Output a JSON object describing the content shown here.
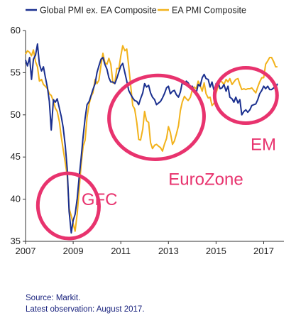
{
  "chart_data": {
    "type": "line",
    "series": [
      {
        "name": "Global PMI ex. EA Composite",
        "color": "#1a2f8f",
        "points": [
          [
            2007.0,
            56.5
          ],
          [
            2007.08,
            55.8
          ],
          [
            2007.17,
            56.8
          ],
          [
            2007.25,
            54.2
          ],
          [
            2007.33,
            56.6
          ],
          [
            2007.42,
            57.1
          ],
          [
            2007.5,
            58.4
          ],
          [
            2007.58,
            56.0
          ],
          [
            2007.67,
            55.2
          ],
          [
            2007.75,
            55.7
          ],
          [
            2007.83,
            54.5
          ],
          [
            2007.92,
            53.2
          ],
          [
            2008.0,
            51.6
          ],
          [
            2008.08,
            48.2
          ],
          [
            2008.17,
            51.8
          ],
          [
            2008.25,
            51.5
          ],
          [
            2008.33,
            51.9
          ],
          [
            2008.42,
            50.8
          ],
          [
            2008.5,
            49.8
          ],
          [
            2008.58,
            48.5
          ],
          [
            2008.67,
            46.3
          ],
          [
            2008.75,
            43.6
          ],
          [
            2008.83,
            38.5
          ],
          [
            2008.92,
            36.0
          ],
          [
            2009.0,
            37.5
          ],
          [
            2009.08,
            38.2
          ],
          [
            2009.17,
            40.1
          ],
          [
            2009.25,
            42.6
          ],
          [
            2009.33,
            44.8
          ],
          [
            2009.42,
            47.5
          ],
          [
            2009.5,
            49.6
          ],
          [
            2009.58,
            51.2
          ],
          [
            2009.67,
            51.6
          ],
          [
            2009.75,
            52.3
          ],
          [
            2009.83,
            53.0
          ],
          [
            2009.92,
            53.7
          ],
          [
            2010.0,
            55.0
          ],
          [
            2010.08,
            55.8
          ],
          [
            2010.17,
            56.6
          ],
          [
            2010.25,
            56.8
          ],
          [
            2010.33,
            56.0
          ],
          [
            2010.42,
            55.4
          ],
          [
            2010.5,
            54.4
          ],
          [
            2010.58,
            53.9
          ],
          [
            2010.67,
            53.9
          ],
          [
            2010.75,
            53.7
          ],
          [
            2010.83,
            54.3
          ],
          [
            2010.92,
            55.1
          ],
          [
            2011.0,
            55.8
          ],
          [
            2011.08,
            56.1
          ],
          [
            2011.17,
            55.0
          ],
          [
            2011.25,
            54.0
          ],
          [
            2011.33,
            52.9
          ],
          [
            2011.42,
            52.4
          ],
          [
            2011.5,
            52.0
          ],
          [
            2011.58,
            51.7
          ],
          [
            2011.67,
            51.6
          ],
          [
            2011.75,
            51.2
          ],
          [
            2011.83,
            51.9
          ],
          [
            2011.92,
            52.6
          ],
          [
            2012.0,
            53.7
          ],
          [
            2012.08,
            53.3
          ],
          [
            2012.17,
            53.5
          ],
          [
            2012.25,
            52.6
          ],
          [
            2012.33,
            52.1
          ],
          [
            2012.42,
            51.8
          ],
          [
            2012.5,
            51.2
          ],
          [
            2012.58,
            51.4
          ],
          [
            2012.67,
            51.6
          ],
          [
            2012.75,
            52.0
          ],
          [
            2012.83,
            52.5
          ],
          [
            2012.92,
            53.2
          ],
          [
            2013.0,
            53.4
          ],
          [
            2013.08,
            52.5
          ],
          [
            2013.17,
            52.8
          ],
          [
            2013.25,
            52.9
          ],
          [
            2013.33,
            52.4
          ],
          [
            2013.42,
            52.1
          ],
          [
            2013.5,
            52.7
          ],
          [
            2013.58,
            53.8
          ],
          [
            2013.67,
            53.6
          ],
          [
            2013.75,
            54.0
          ],
          [
            2013.83,
            53.8
          ],
          [
            2013.92,
            53.3
          ],
          [
            2014.0,
            53.4
          ],
          [
            2014.08,
            52.9
          ],
          [
            2014.17,
            52.6
          ],
          [
            2014.25,
            53.6
          ],
          [
            2014.33,
            53.4
          ],
          [
            2014.42,
            54.4
          ],
          [
            2014.5,
            54.8
          ],
          [
            2014.58,
            54.3
          ],
          [
            2014.67,
            54.2
          ],
          [
            2014.75,
            53.3
          ],
          [
            2014.83,
            53.9
          ],
          [
            2014.92,
            52.8
          ],
          [
            2015.0,
            53.7
          ],
          [
            2015.08,
            53.9
          ],
          [
            2015.17,
            53.1
          ],
          [
            2015.25,
            53.2
          ],
          [
            2015.33,
            53.6
          ],
          [
            2015.42,
            52.8
          ],
          [
            2015.5,
            53.4
          ],
          [
            2015.58,
            52.1
          ],
          [
            2015.67,
            51.9
          ],
          [
            2015.75,
            51.5
          ],
          [
            2015.83,
            52.1
          ],
          [
            2015.92,
            51.4
          ],
          [
            2016.0,
            51.8
          ],
          [
            2016.08,
            50.0
          ],
          [
            2016.17,
            50.4
          ],
          [
            2016.25,
            50.6
          ],
          [
            2016.33,
            50.3
          ],
          [
            2016.42,
            50.6
          ],
          [
            2016.5,
            51.1
          ],
          [
            2016.58,
            51.2
          ],
          [
            2016.67,
            51.3
          ],
          [
            2016.75,
            51.8
          ],
          [
            2016.83,
            52.5
          ],
          [
            2016.92,
            52.9
          ],
          [
            2017.0,
            53.4
          ],
          [
            2017.08,
            53.1
          ],
          [
            2017.17,
            53.4
          ],
          [
            2017.25,
            53.0
          ],
          [
            2017.33,
            53.0
          ],
          [
            2017.42,
            53.2
          ],
          [
            2017.5,
            53.2
          ],
          [
            2017.58,
            53.7
          ]
        ]
      },
      {
        "name": "EA PMI Composite",
        "color": "#f2b21b",
        "points": [
          [
            2007.0,
            57.2
          ],
          [
            2007.08,
            57.6
          ],
          [
            2007.17,
            57.4
          ],
          [
            2007.25,
            57.0
          ],
          [
            2007.33,
            57.7
          ],
          [
            2007.42,
            56.3
          ],
          [
            2007.5,
            55.7
          ],
          [
            2007.58,
            54.0
          ],
          [
            2007.67,
            54.2
          ],
          [
            2007.75,
            53.6
          ],
          [
            2007.83,
            53.4
          ],
          [
            2007.92,
            53.1
          ],
          [
            2008.0,
            52.5
          ],
          [
            2008.08,
            52.3
          ],
          [
            2008.17,
            51.6
          ],
          [
            2008.25,
            50.8
          ],
          [
            2008.33,
            50.4
          ],
          [
            2008.42,
            49.2
          ],
          [
            2008.5,
            47.4
          ],
          [
            2008.58,
            45.9
          ],
          [
            2008.67,
            44.3
          ],
          [
            2008.75,
            42.8
          ],
          [
            2008.83,
            38.9
          ],
          [
            2008.92,
            38.0
          ],
          [
            2009.0,
            37.1
          ],
          [
            2009.08,
            36.2
          ],
          [
            2009.17,
            38.3
          ],
          [
            2009.25,
            41.1
          ],
          [
            2009.33,
            44.0
          ],
          [
            2009.42,
            46.3
          ],
          [
            2009.5,
            47.0
          ],
          [
            2009.58,
            49.7
          ],
          [
            2009.67,
            51.3
          ],
          [
            2009.75,
            52.2
          ],
          [
            2009.83,
            52.6
          ],
          [
            2009.92,
            54.2
          ],
          [
            2010.0,
            53.7
          ],
          [
            2010.08,
            54.1
          ],
          [
            2010.17,
            55.9
          ],
          [
            2010.25,
            57.3
          ],
          [
            2010.33,
            56.2
          ],
          [
            2010.42,
            56.0
          ],
          [
            2010.5,
            56.7
          ],
          [
            2010.58,
            56.0
          ],
          [
            2010.67,
            53.8
          ],
          [
            2010.75,
            53.8
          ],
          [
            2010.83,
            55.5
          ],
          [
            2010.92,
            55.5
          ],
          [
            2011.0,
            57.0
          ],
          [
            2011.08,
            58.2
          ],
          [
            2011.17,
            57.6
          ],
          [
            2011.25,
            57.8
          ],
          [
            2011.33,
            55.8
          ],
          [
            2011.42,
            53.3
          ],
          [
            2011.5,
            51.1
          ],
          [
            2011.58,
            50.7
          ],
          [
            2011.67,
            49.1
          ],
          [
            2011.75,
            47.1
          ],
          [
            2011.83,
            47.0
          ],
          [
            2011.92,
            48.3
          ],
          [
            2012.0,
            50.4
          ],
          [
            2012.08,
            49.3
          ],
          [
            2012.17,
            49.1
          ],
          [
            2012.25,
            46.7
          ],
          [
            2012.33,
            46.0
          ],
          [
            2012.42,
            46.4
          ],
          [
            2012.5,
            46.5
          ],
          [
            2012.58,
            46.3
          ],
          [
            2012.67,
            46.1
          ],
          [
            2012.75,
            45.7
          ],
          [
            2012.83,
            46.5
          ],
          [
            2012.92,
            47.2
          ],
          [
            2013.0,
            48.6
          ],
          [
            2013.08,
            47.9
          ],
          [
            2013.17,
            46.5
          ],
          [
            2013.25,
            46.9
          ],
          [
            2013.33,
            47.7
          ],
          [
            2013.42,
            48.7
          ],
          [
            2013.5,
            50.5
          ],
          [
            2013.58,
            51.5
          ],
          [
            2013.67,
            52.2
          ],
          [
            2013.75,
            51.9
          ],
          [
            2013.83,
            51.7
          ],
          [
            2013.92,
            52.1
          ],
          [
            2014.0,
            52.9
          ],
          [
            2014.08,
            53.3
          ],
          [
            2014.17,
            53.1
          ],
          [
            2014.25,
            54.0
          ],
          [
            2014.33,
            53.5
          ],
          [
            2014.42,
            52.8
          ],
          [
            2014.5,
            53.8
          ],
          [
            2014.58,
            52.5
          ],
          [
            2014.67,
            52.0
          ],
          [
            2014.75,
            52.1
          ],
          [
            2014.83,
            51.1
          ],
          [
            2014.92,
            51.4
          ],
          [
            2015.0,
            52.6
          ],
          [
            2015.08,
            53.3
          ],
          [
            2015.17,
            54.0
          ],
          [
            2015.25,
            53.9
          ],
          [
            2015.33,
            53.6
          ],
          [
            2015.42,
            54.2
          ],
          [
            2015.5,
            53.9
          ],
          [
            2015.58,
            54.3
          ],
          [
            2015.67,
            53.6
          ],
          [
            2015.75,
            53.9
          ],
          [
            2015.83,
            54.2
          ],
          [
            2015.92,
            54.3
          ],
          [
            2016.0,
            53.6
          ],
          [
            2016.08,
            53.0
          ],
          [
            2016.17,
            53.1
          ],
          [
            2016.25,
            53.0
          ],
          [
            2016.33,
            53.1
          ],
          [
            2016.42,
            53.1
          ],
          [
            2016.5,
            53.2
          ],
          [
            2016.58,
            52.9
          ],
          [
            2016.67,
            52.6
          ],
          [
            2016.75,
            53.3
          ],
          [
            2016.83,
            53.9
          ],
          [
            2016.92,
            54.4
          ],
          [
            2017.0,
            54.4
          ],
          [
            2017.08,
            56.0
          ],
          [
            2017.17,
            56.4
          ],
          [
            2017.25,
            56.8
          ],
          [
            2017.33,
            56.8
          ],
          [
            2017.42,
            56.3
          ],
          [
            2017.5,
            55.7
          ],
          [
            2017.58,
            55.7
          ]
        ]
      }
    ],
    "xlim": [
      2007,
      2017.85
    ],
    "ylim": [
      35,
      60
    ],
    "x_ticks": [
      2007,
      2009,
      2011,
      2013,
      2015,
      2017
    ],
    "y_ticks": [
      35,
      40,
      45,
      50,
      55,
      60
    ],
    "x_tick_labels": [
      "2007",
      "2009",
      "2011",
      "2013",
      "2015",
      "2017"
    ],
    "y_tick_labels": [
      "35",
      "40",
      "45",
      "50",
      "55",
      "60"
    ],
    "grid": false,
    "legend_placement": "top",
    "annotations": [
      {
        "label": "GFC",
        "circle_center": [
          2008.8,
          39.2
        ],
        "text_anchor": [
          2009.35,
          39.3
        ]
      },
      {
        "label": "EuroZone",
        "circle_center": [
          2012.5,
          49.7
        ],
        "text_anchor": [
          2013.0,
          41.7
        ]
      },
      {
        "label": "EM",
        "circle_center": [
          2016.25,
          52.3
        ],
        "text_anchor": [
          2016.45,
          45.8
        ]
      }
    ],
    "annotation_color": "#e8336e"
  },
  "footer": {
    "source": "Source: Markit.",
    "latest": "Latest observation: August 2017."
  }
}
